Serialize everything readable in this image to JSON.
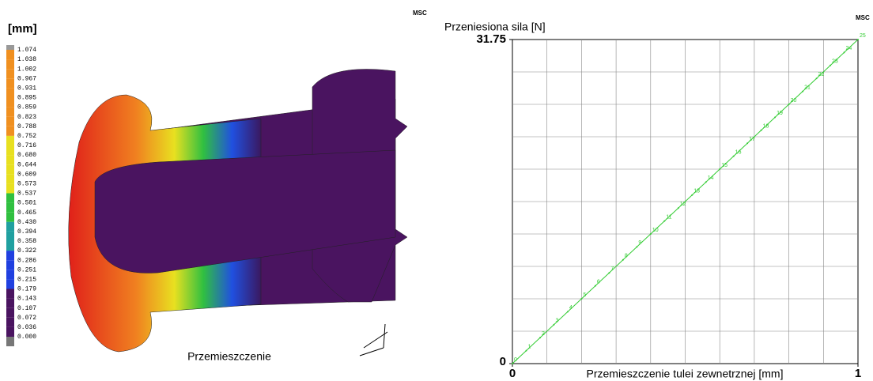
{
  "contour": {
    "unit_label": "[mm]",
    "logo": "MSC",
    "caption": "Przemieszczenie",
    "levels": [
      "1.074",
      "1.038",
      "1.002",
      "0.967",
      "0.931",
      "0.895",
      "0.859",
      "0.823",
      "0.788",
      "0.752",
      "0.716",
      "0.680",
      "0.644",
      "0.609",
      "0.573",
      "0.537",
      "0.501",
      "0.465",
      "0.430",
      "0.394",
      "0.358",
      "0.322",
      "0.286",
      "0.251",
      "0.215",
      "0.179",
      "0.143",
      "0.107",
      "0.072",
      "0.036",
      "0.000"
    ]
  },
  "chart_data": {
    "type": "line",
    "logo": "MSC",
    "y_label": "Przeniesiona sila [N]",
    "x_label": "Przemieszczenie tulei zewnetrznej [mm]",
    "xlim": [
      0,
      1
    ],
    "ylim": [
      0,
      31.75
    ],
    "xticks": [
      0,
      1
    ],
    "yticks": [
      0,
      31.75
    ],
    "grid": true,
    "series": [
      {
        "color": "#33cc33",
        "x": [
          0,
          0.04,
          0.08,
          0.12,
          0.16,
          0.2,
          0.24,
          0.28,
          0.32,
          0.36,
          0.4,
          0.44,
          0.48,
          0.52,
          0.56,
          0.6,
          0.64,
          0.68,
          0.72,
          0.76,
          0.8,
          0.84,
          0.88,
          0.92,
          0.96,
          1
        ],
        "values": [
          0,
          1.27,
          2.54,
          3.81,
          5.08,
          6.35,
          7.62,
          8.89,
          10.16,
          11.43,
          12.7,
          13.97,
          15.24,
          16.51,
          17.78,
          19.05,
          20.32,
          21.59,
          22.86,
          24.13,
          25.4,
          26.67,
          27.94,
          29.21,
          30.48,
          31.75
        ],
        "point_labels": [
          0,
          1,
          2,
          3,
          4,
          5,
          6,
          7,
          8,
          9,
          10,
          11,
          12,
          13,
          14,
          15,
          16,
          17,
          18,
          19,
          20,
          21,
          22,
          23,
          24,
          25
        ]
      }
    ]
  }
}
